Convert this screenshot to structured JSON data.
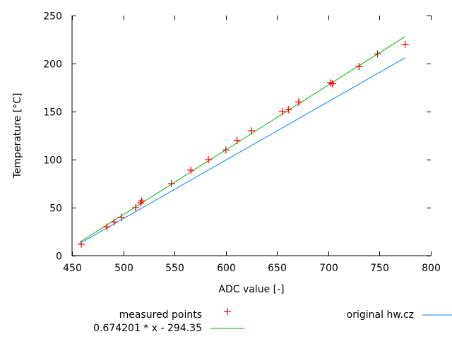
{
  "chart_data": {
    "type": "scatter",
    "title": "",
    "xlabel": "ADC value [-]",
    "ylabel": "Temperature [°C]",
    "xlim": [
      450,
      800
    ],
    "ylim": [
      0,
      250
    ],
    "xticks": [
      450,
      500,
      550,
      600,
      650,
      700,
      750,
      800
    ],
    "yticks": [
      0,
      50,
      100,
      150,
      200,
      250
    ],
    "grid": false,
    "legend": "bottom",
    "series": [
      {
        "name": "measured points",
        "type": "scatter",
        "marker": "+",
        "color": "#ff0000",
        "points": [
          [
            459,
            12
          ],
          [
            484,
            30
          ],
          [
            491,
            35
          ],
          [
            498,
            40
          ],
          [
            512,
            50
          ],
          [
            517,
            55
          ],
          [
            518,
            57
          ],
          [
            547,
            75
          ],
          [
            566,
            89
          ],
          [
            583,
            100
          ],
          [
            600,
            110
          ],
          [
            611,
            120
          ],
          [
            625,
            130
          ],
          [
            655,
            150
          ],
          [
            661,
            152
          ],
          [
            671,
            160
          ],
          [
            702,
            180
          ],
          [
            704,
            179
          ],
          [
            730,
            197
          ],
          [
            748,
            210
          ],
          [
            775,
            220
          ]
        ]
      },
      {
        "name": "original hw.cz",
        "type": "line",
        "color": "#0080ff",
        "points": [
          [
            458,
            13
          ],
          [
            775,
            206
          ]
        ]
      },
      {
        "name": "0.674201 * x - 294.35",
        "type": "line",
        "color": "#00b000",
        "slope": 0.674201,
        "intercept": -294.35,
        "x_range": [
          458,
          775
        ]
      }
    ]
  }
}
